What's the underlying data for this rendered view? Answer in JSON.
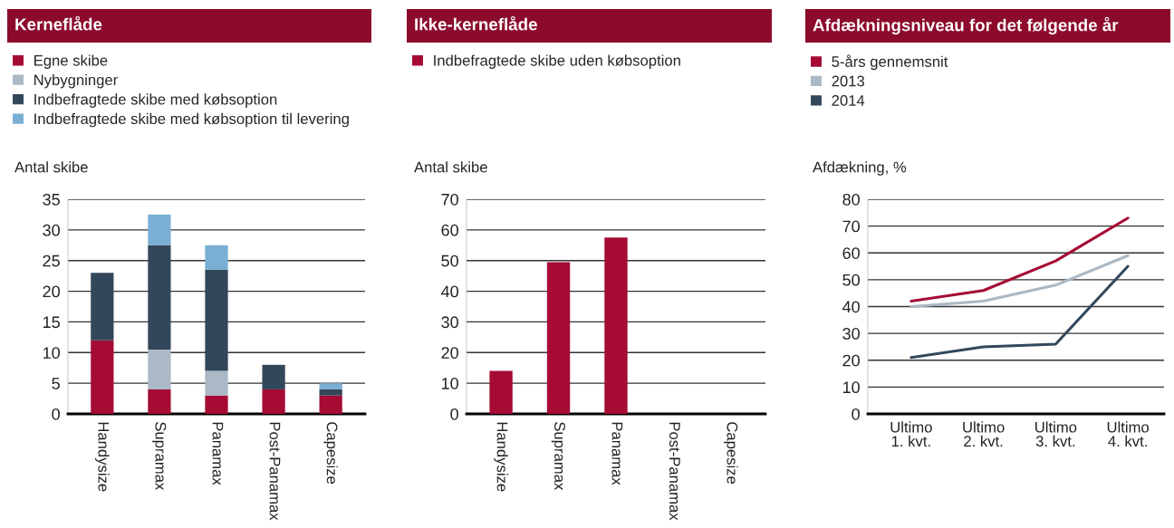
{
  "chart_data": [
    {
      "type": "bar",
      "title": "Kerneflåde",
      "ylabel": "Antal skibe",
      "stacked": true,
      "grid": "y",
      "legend": "top left",
      "categories": [
        "Handysize",
        "Supramax",
        "Panamax",
        "Post-Panamax",
        "Capesize"
      ],
      "ylim": [
        0,
        35
      ],
      "yticks": [
        0,
        5,
        10,
        15,
        20,
        25,
        30,
        35
      ],
      "series": [
        {
          "name": "Egne skibe",
          "color": "#a50b35",
          "values": [
            12,
            4,
            3,
            4,
            3
          ]
        },
        {
          "name": "Nybygninger",
          "color": "#abb8c5",
          "values": [
            0,
            6.5,
            4,
            0,
            0
          ]
        },
        {
          "name": "Indbefragtede skibe med købsoption",
          "color": "#33475a",
          "values": [
            11,
            17,
            16.5,
            4,
            1
          ]
        },
        {
          "name": "Indbefragtede skibe med købsoption til levering",
          "color": "#7aaed3",
          "values": [
            0,
            5,
            4,
            0,
            1
          ]
        }
      ]
    },
    {
      "type": "bar",
      "title": "Ikke-kerneflåde",
      "ylabel": "Antal skibe",
      "grid": "y",
      "legend": "top left",
      "categories": [
        "Handysize",
        "Supramax",
        "Panamax",
        "Post-Panamax",
        "Capesize"
      ],
      "ylim": [
        0,
        70
      ],
      "yticks": [
        0,
        10,
        20,
        30,
        40,
        50,
        60,
        70
      ],
      "series": [
        {
          "name": "Indbefragtede skibe uden købsoption",
          "color": "#a50b35",
          "values": [
            14,
            49.5,
            57.5,
            0,
            0
          ]
        }
      ]
    },
    {
      "type": "line",
      "title": "Afdækningsniveau for det følgende år",
      "ylabel": "Afdækning, %",
      "grid": "y",
      "legend": "top left",
      "categories": [
        "Ultimo\n1. kvt.",
        "Ultimo\n2. kvt.",
        "Ultimo\n3. kvt.",
        "Ultimo\n4. kvt."
      ],
      "ylim": [
        0,
        80
      ],
      "yticks": [
        0,
        10,
        20,
        30,
        40,
        50,
        60,
        70,
        80
      ],
      "series": [
        {
          "name": "5-års gennemsnit",
          "color": "#a50b35",
          "values": [
            42,
            46,
            57,
            73
          ]
        },
        {
          "name": "2013",
          "color": "#abb8c5",
          "values": [
            40,
            42,
            48,
            59
          ]
        },
        {
          "name": "2014",
          "color": "#33475a",
          "values": [
            21,
            25,
            26,
            55
          ]
        }
      ]
    }
  ]
}
